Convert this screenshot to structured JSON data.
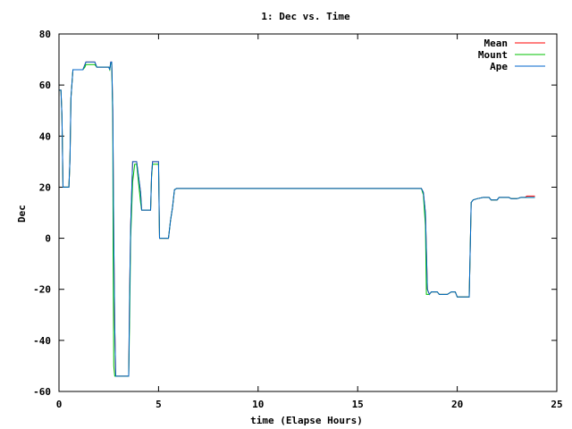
{
  "chart_data": {
    "type": "line",
    "title": "1: Dec vs. Time",
    "xlabel": "time (Elapse Hours)",
    "ylabel": "Dec",
    "xlim": [
      0,
      25
    ],
    "ylim": [
      -60,
      80
    ],
    "xticks": [
      0,
      5,
      10,
      15,
      20,
      25
    ],
    "yticks": [
      -60,
      -40,
      -20,
      0,
      20,
      40,
      60,
      80
    ],
    "grid": false,
    "legend_position": "top-right",
    "series": [
      {
        "name": "Mean",
        "color": "#ff0000",
        "points": [
          [
            0,
            58
          ],
          [
            0.1,
            58
          ],
          [
            0.15,
            48
          ],
          [
            0.2,
            20
          ],
          [
            0.5,
            20
          ],
          [
            0.55,
            31
          ],
          [
            0.6,
            55
          ],
          [
            0.7,
            66
          ],
          [
            1.0,
            66
          ],
          [
            1.2,
            66
          ],
          [
            1.3,
            68
          ],
          [
            1.35,
            69
          ],
          [
            1.8,
            69
          ],
          [
            1.9,
            67
          ],
          [
            2.2,
            67
          ],
          [
            2.5,
            67
          ],
          [
            2.55,
            66
          ],
          [
            2.6,
            69
          ],
          [
            2.65,
            69
          ],
          [
            2.7,
            50
          ],
          [
            2.75,
            0
          ],
          [
            2.8,
            -35
          ],
          [
            2.85,
            -54
          ],
          [
            2.95,
            -54
          ],
          [
            3.0,
            -54
          ],
          [
            3.5,
            -54
          ],
          [
            3.55,
            -20
          ],
          [
            3.6,
            5
          ],
          [
            3.7,
            30
          ],
          [
            3.9,
            30
          ],
          [
            4.1,
            18
          ],
          [
            4.15,
            11
          ],
          [
            4.6,
            11
          ],
          [
            4.65,
            25
          ],
          [
            4.7,
            30
          ],
          [
            5.0,
            30
          ],
          [
            5.05,
            0
          ],
          [
            5.5,
            0
          ],
          [
            5.6,
            7
          ],
          [
            5.7,
            12
          ],
          [
            5.8,
            19
          ],
          [
            5.9,
            19.5
          ],
          [
            18.2,
            19.5
          ],
          [
            18.3,
            18
          ],
          [
            18.4,
            10
          ],
          [
            18.5,
            -20
          ],
          [
            18.6,
            -22
          ],
          [
            18.7,
            -21
          ],
          [
            19.0,
            -21
          ],
          [
            19.1,
            -22
          ],
          [
            19.5,
            -22
          ],
          [
            19.7,
            -21
          ],
          [
            19.9,
            -21
          ],
          [
            20.0,
            -23
          ],
          [
            20.6,
            -23
          ],
          [
            20.7,
            14
          ],
          [
            20.8,
            15
          ],
          [
            21.0,
            15.5
          ],
          [
            21.3,
            16
          ],
          [
            21.6,
            16
          ],
          [
            21.7,
            15
          ],
          [
            22.0,
            15
          ],
          [
            22.1,
            16
          ],
          [
            22.6,
            16
          ],
          [
            22.7,
            15.5
          ],
          [
            23.0,
            15.5
          ],
          [
            23.2,
            16
          ],
          [
            23.4,
            16
          ],
          [
            23.5,
            16.5
          ],
          [
            23.9,
            16.5
          ]
        ]
      },
      {
        "name": "Mount",
        "color": "#00c000",
        "points": [
          [
            0,
            58
          ],
          [
            0.1,
            58
          ],
          [
            0.15,
            48
          ],
          [
            0.2,
            20
          ],
          [
            0.5,
            20
          ],
          [
            0.55,
            31
          ],
          [
            0.6,
            55
          ],
          [
            0.7,
            66
          ],
          [
            1.0,
            66
          ],
          [
            1.2,
            66
          ],
          [
            1.3,
            67
          ],
          [
            1.35,
            68
          ],
          [
            1.8,
            68
          ],
          [
            1.9,
            67
          ],
          [
            2.2,
            67
          ],
          [
            2.5,
            67
          ],
          [
            2.55,
            66
          ],
          [
            2.6,
            68.5
          ],
          [
            2.65,
            68.5
          ],
          [
            2.7,
            45
          ],
          [
            2.72,
            -5
          ],
          [
            2.75,
            -50
          ],
          [
            2.8,
            -54
          ],
          [
            2.95,
            -54
          ],
          [
            3.0,
            -54
          ],
          [
            3.5,
            -54
          ],
          [
            3.55,
            -30
          ],
          [
            3.6,
            0
          ],
          [
            3.7,
            22
          ],
          [
            3.8,
            29
          ],
          [
            3.9,
            29
          ],
          [
            4.1,
            14
          ],
          [
            4.15,
            11
          ],
          [
            4.6,
            11
          ],
          [
            4.65,
            24
          ],
          [
            4.7,
            29
          ],
          [
            5.0,
            29
          ],
          [
            5.05,
            0
          ],
          [
            5.5,
            0
          ],
          [
            5.6,
            7
          ],
          [
            5.7,
            12
          ],
          [
            5.8,
            19
          ],
          [
            5.9,
            19.5
          ],
          [
            18.2,
            19.5
          ],
          [
            18.3,
            17
          ],
          [
            18.4,
            5
          ],
          [
            18.45,
            -22
          ],
          [
            18.6,
            -22
          ],
          [
            18.7,
            -21
          ],
          [
            19.0,
            -21
          ],
          [
            19.1,
            -22
          ],
          [
            19.5,
            -22
          ],
          [
            19.7,
            -21
          ],
          [
            19.9,
            -21
          ],
          [
            20.0,
            -23
          ],
          [
            20.6,
            -23
          ],
          [
            20.7,
            14
          ],
          [
            20.8,
            15
          ],
          [
            21.0,
            15.5
          ],
          [
            21.3,
            16
          ],
          [
            21.6,
            16
          ],
          [
            21.7,
            15
          ],
          [
            22.0,
            15
          ],
          [
            22.1,
            16
          ],
          [
            22.6,
            16
          ],
          [
            22.7,
            15.5
          ],
          [
            23.0,
            15.5
          ],
          [
            23.2,
            16
          ],
          [
            23.4,
            16
          ],
          [
            23.5,
            16
          ],
          [
            23.9,
            16
          ]
        ]
      },
      {
        "name": "Ape",
        "color": "#0066cc",
        "points": [
          [
            0,
            58
          ],
          [
            0.1,
            58
          ],
          [
            0.15,
            48
          ],
          [
            0.2,
            20
          ],
          [
            0.5,
            20
          ],
          [
            0.55,
            31
          ],
          [
            0.6,
            55
          ],
          [
            0.7,
            66
          ],
          [
            1.0,
            66
          ],
          [
            1.2,
            66
          ],
          [
            1.3,
            68
          ],
          [
            1.35,
            69
          ],
          [
            1.8,
            69
          ],
          [
            1.9,
            67
          ],
          [
            2.2,
            67
          ],
          [
            2.5,
            67
          ],
          [
            2.55,
            66
          ],
          [
            2.6,
            69
          ],
          [
            2.65,
            69
          ],
          [
            2.7,
            50
          ],
          [
            2.75,
            0
          ],
          [
            2.8,
            -35
          ],
          [
            2.85,
            -54
          ],
          [
            2.95,
            -54
          ],
          [
            3.0,
            -54
          ],
          [
            3.5,
            -54
          ],
          [
            3.55,
            -20
          ],
          [
            3.6,
            5
          ],
          [
            3.7,
            30
          ],
          [
            3.9,
            30
          ],
          [
            4.1,
            18
          ],
          [
            4.15,
            11
          ],
          [
            4.6,
            11
          ],
          [
            4.65,
            25
          ],
          [
            4.7,
            30
          ],
          [
            5.0,
            30
          ],
          [
            5.05,
            0
          ],
          [
            5.5,
            0
          ],
          [
            5.6,
            7
          ],
          [
            5.7,
            12
          ],
          [
            5.8,
            19
          ],
          [
            5.9,
            19.5
          ],
          [
            18.2,
            19.5
          ],
          [
            18.3,
            18
          ],
          [
            18.4,
            10
          ],
          [
            18.5,
            -20
          ],
          [
            18.6,
            -22
          ],
          [
            18.7,
            -21
          ],
          [
            19.0,
            -21
          ],
          [
            19.1,
            -22
          ],
          [
            19.5,
            -22
          ],
          [
            19.7,
            -21
          ],
          [
            19.9,
            -21
          ],
          [
            20.0,
            -23
          ],
          [
            20.6,
            -23
          ],
          [
            20.7,
            14
          ],
          [
            20.8,
            15
          ],
          [
            21.0,
            15.5
          ],
          [
            21.3,
            16
          ],
          [
            21.6,
            16
          ],
          [
            21.7,
            15
          ],
          [
            22.0,
            15
          ],
          [
            22.1,
            16
          ],
          [
            22.6,
            16
          ],
          [
            22.7,
            15.5
          ],
          [
            23.0,
            15.5
          ],
          [
            23.2,
            16
          ],
          [
            23.4,
            16
          ],
          [
            23.5,
            16
          ],
          [
            23.9,
            16
          ]
        ]
      }
    ]
  }
}
